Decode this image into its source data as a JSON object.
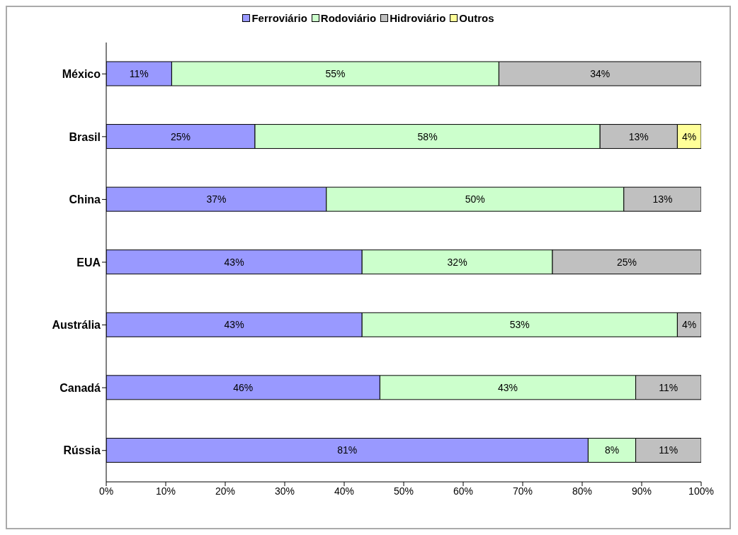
{
  "chart_data": {
    "type": "bar",
    "orientation": "horizontal",
    "stacked": true,
    "categories": [
      "México",
      "Brasil",
      "China",
      "EUA",
      "Austrália",
      "Canadá",
      "Rússia"
    ],
    "series": [
      {
        "name": "Ferroviário",
        "color": "#9999ff",
        "values": [
          11,
          25,
          37,
          43,
          43,
          46,
          81
        ],
        "value_labels": [
          "11%",
          "25%",
          "37%",
          "43%",
          "43%",
          "46%",
          "81%"
        ]
      },
      {
        "name": "Rodoviário",
        "color": "#ccffcc",
        "values": [
          55,
          58,
          50,
          32,
          53,
          43,
          8
        ],
        "value_labels": [
          "55%",
          "58%",
          "50%",
          "32%",
          "53%",
          "43%",
          "8%"
        ]
      },
      {
        "name": "Hidroviário",
        "color": "#c0c0c0",
        "values": [
          34,
          13,
          13,
          25,
          4,
          11,
          11
        ],
        "value_labels": [
          "34%",
          "13%",
          "13%",
          "25%",
          "4%",
          "11%",
          "11%"
        ]
      },
      {
        "name": "Outros",
        "color": "#ffff99",
        "values": [
          null,
          4,
          null,
          null,
          null,
          null,
          null
        ],
        "value_labels": [
          null,
          "4%",
          null,
          null,
          null,
          null,
          null
        ]
      }
    ],
    "xlim": [
      0,
      100
    ],
    "xticks": [
      {
        "value": 0,
        "label": "0%"
      },
      {
        "value": 10,
        "label": "10%"
      },
      {
        "value": 20,
        "label": "20%"
      },
      {
        "value": 30,
        "label": "30%"
      },
      {
        "value": 40,
        "label": "40%"
      },
      {
        "value": 50,
        "label": "50%"
      },
      {
        "value": 60,
        "label": "60%"
      },
      {
        "value": 70,
        "label": "70%"
      },
      {
        "value": 80,
        "label": "80%"
      },
      {
        "value": 90,
        "label": "90%"
      },
      {
        "value": 100,
        "label": "100%"
      }
    ],
    "legend": "top",
    "grid": false
  }
}
